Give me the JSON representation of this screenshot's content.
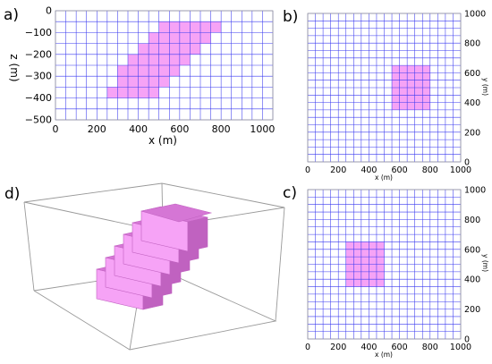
{
  "colors": {
    "grid": "#3a3af0",
    "body": "#f6a3f6",
    "body_top": "#d576d5",
    "body_side": "#c062c0",
    "frame": "#999999"
  },
  "panel_labels": {
    "a": "a)",
    "b": "b)",
    "c": "c)",
    "d": "d)"
  },
  "chart_data": [
    {
      "panel": "a",
      "type": "heatmap",
      "xlabel": "x (m)",
      "ylabel": "z (m)",
      "xlim": [
        0,
        1050
      ],
      "ylim": [
        -500,
        0
      ],
      "x_ticks": [
        "0",
        "200",
        "400",
        "600",
        "800",
        "1000"
      ],
      "y_ticks": [
        "0",
        "−100",
        "−200",
        "−300",
        "−400",
        "−500"
      ],
      "grid": true,
      "body_cells": [
        {
          "x": [
            500,
            800
          ],
          "z": [
            -50,
            -100
          ]
        },
        {
          "x": [
            450,
            750
          ],
          "z": [
            -100,
            -150
          ]
        },
        {
          "x": [
            400,
            700
          ],
          "z": [
            -150,
            -200
          ]
        },
        {
          "x": [
            350,
            650
          ],
          "z": [
            -200,
            -250
          ]
        },
        {
          "x": [
            300,
            600
          ],
          "z": [
            -250,
            -300
          ]
        },
        {
          "x": [
            300,
            550
          ],
          "z": [
            -300,
            -350
          ]
        },
        {
          "x": [
            250,
            500
          ],
          "z": [
            -350,
            -400
          ]
        }
      ]
    },
    {
      "panel": "b",
      "type": "heatmap",
      "xlabel": "x (m)",
      "ylabel": "y (m)",
      "xlim": [
        0,
        1000
      ],
      "ylim": [
        0,
        1000
      ],
      "x_ticks": [
        "0",
        "200",
        "400",
        "600",
        "800",
        "1000"
      ],
      "y_ticks": [
        "0",
        "200",
        "400",
        "600",
        "800",
        "1000"
      ],
      "grid": true,
      "body_cells": [
        {
          "x": [
            550,
            800
          ],
          "y": [
            350,
            650
          ]
        }
      ]
    },
    {
      "panel": "c",
      "type": "heatmap",
      "xlabel": "x (m)",
      "ylabel": "y (m)",
      "xlim": [
        0,
        1000
      ],
      "ylim": [
        0,
        1000
      ],
      "x_ticks": [
        "0",
        "200",
        "400",
        "600",
        "800",
        "1000"
      ],
      "y_ticks": [
        "0",
        "200",
        "400",
        "600",
        "800",
        "1000"
      ],
      "grid": true,
      "body_cells": [
        {
          "x": [
            250,
            500
          ],
          "y": [
            350,
            650
          ]
        }
      ]
    }
  ]
}
